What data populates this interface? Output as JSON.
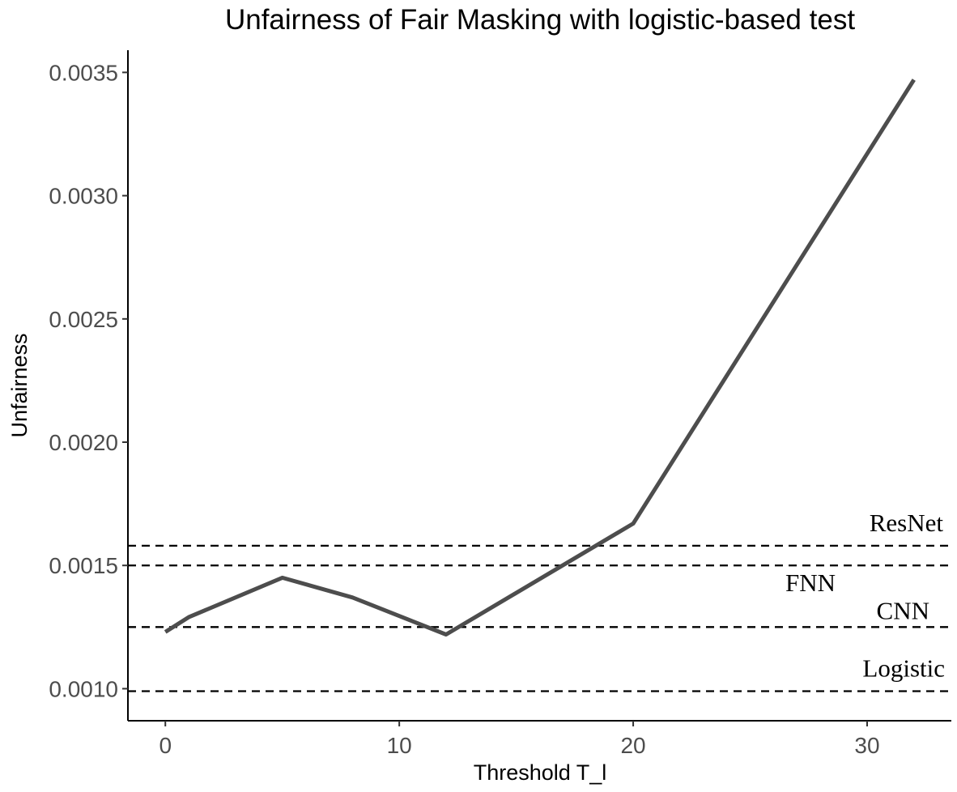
{
  "chart_data": {
    "type": "line",
    "title": "Unfairness of Fair Masking with logistic-based test",
    "xlabel": "Threshold T_l",
    "ylabel": "Unfairness",
    "xlim": [
      -1.6,
      33.6
    ],
    "ylim": [
      0.00087,
      0.00359
    ],
    "xticks": [
      0,
      10,
      20,
      30
    ],
    "xtick_labels": [
      "0",
      "10",
      "20",
      "30"
    ],
    "yticks": [
      0.001,
      0.0015,
      0.002,
      0.0025,
      0.003,
      0.0035
    ],
    "ytick_labels": [
      "0.0010",
      "0.0015",
      "0.0020",
      "0.0025",
      "0.0030",
      "0.0035"
    ],
    "grid": false,
    "legend": "none",
    "line_color": "#4d4d4d",
    "series": [
      {
        "x": [
          0,
          1,
          5,
          8,
          12,
          20,
          32
        ],
        "y": [
          0.00123,
          0.00129,
          0.00145,
          0.00137,
          0.00122,
          0.00167,
          0.00347
        ]
      }
    ],
    "reference_lines": [
      {
        "label": "ResNet",
        "y": 0.00158
      },
      {
        "label": "FNN",
        "y": 0.0015
      },
      {
        "label": "CNN",
        "y": 0.00125
      },
      {
        "label": "Logistic",
        "y": 0.00099
      }
    ]
  }
}
